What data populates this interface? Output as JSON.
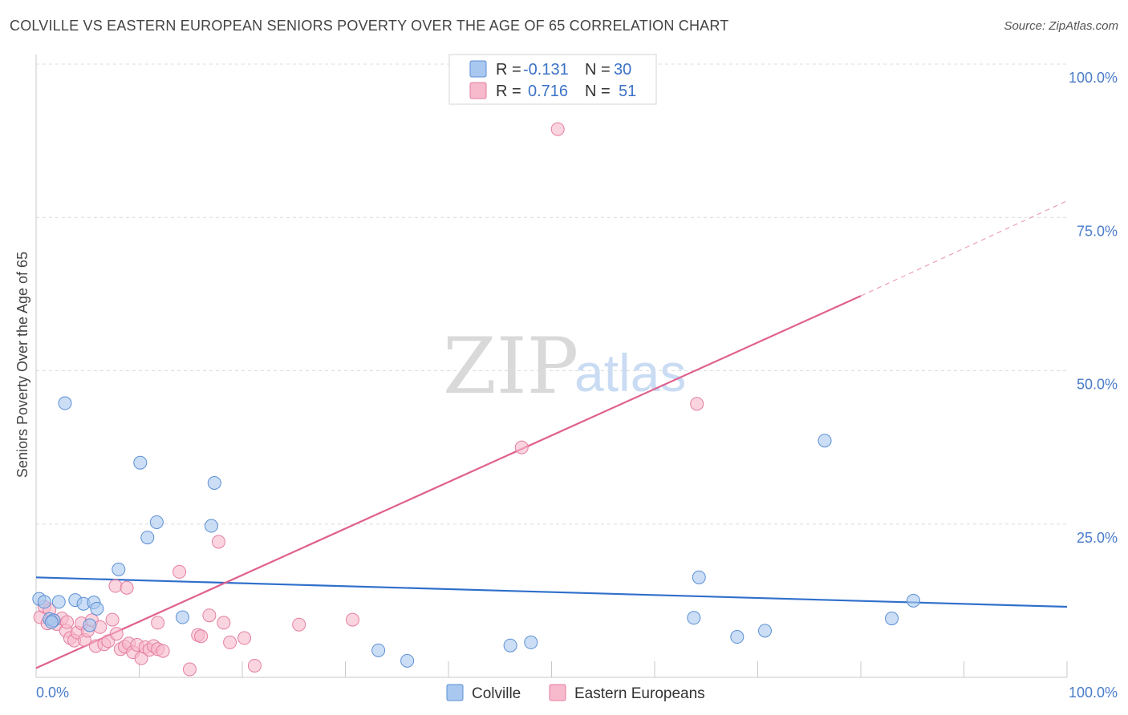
{
  "header": {
    "title": "COLVILLE VS EASTERN EUROPEAN SENIORS POVERTY OVER THE AGE OF 65 CORRELATION CHART",
    "source": "Source: ZipAtlas.com"
  },
  "watermark": {
    "zip": "ZIP",
    "atlas": "atlas"
  },
  "legend": {
    "rows": [
      {
        "r_label": "R =",
        "r_value": "-0.131",
        "n_label": "N =",
        "n_value": "30",
        "color": "#a9c8ef",
        "stroke": "#5b8fd4"
      },
      {
        "r_label": "R =",
        "r_value": "0.716",
        "n_label": "N =",
        "n_value": "51",
        "color": "#f7b9cc",
        "stroke": "#e47ea0"
      }
    ]
  },
  "bottom_legend": {
    "items": [
      "Colville",
      "Eastern Europeans"
    ]
  },
  "chart_data": {
    "type": "scatter",
    "title": "COLVILLE VS EASTERN EUROPEAN SENIORS POVERTY OVER THE AGE OF 65 CORRELATION CHART",
    "xlabel": "",
    "ylabel": "Seniors Poverty Over the Age of 65",
    "xlim": [
      0,
      100
    ],
    "ylim": [
      0,
      100
    ],
    "x_tick_labels": [
      "0.0%",
      "100.0%"
    ],
    "y_tick_labels": [
      "100.0%",
      "75.0%",
      "50.0%",
      "25.0%"
    ],
    "y_ticks": [
      100,
      75,
      50,
      25
    ],
    "colors": {
      "colville": "#a9c8ef",
      "colville_stroke": "#5b8fd4",
      "colville_line": "#2f6fcb",
      "eastern": "#f7b9cc",
      "eastern_stroke": "#e47ea0",
      "eastern_line": "#e0608e",
      "grid": "#dcdcdc"
    },
    "series": [
      {
        "name": "Colville",
        "trend": {
          "x1": 0,
          "y1": 16.3,
          "x2": 100,
          "y2": 11.5
        },
        "points": [
          [
            0.3,
            12.8
          ],
          [
            0.8,
            12.3
          ],
          [
            2.2,
            12.3
          ],
          [
            1.3,
            9.5
          ],
          [
            1.7,
            9.3
          ],
          [
            2.8,
            44.7
          ],
          [
            3.8,
            12.6
          ],
          [
            4.6,
            12.0
          ],
          [
            5.6,
            12.2
          ],
          [
            5.9,
            11.2
          ],
          [
            5.2,
            8.5
          ],
          [
            8.0,
            17.6
          ],
          [
            10.1,
            35.0
          ],
          [
            10.8,
            22.8
          ],
          [
            11.7,
            25.3
          ],
          [
            14.2,
            9.8
          ],
          [
            17.0,
            24.7
          ],
          [
            17.3,
            31.7
          ],
          [
            33.2,
            4.4
          ],
          [
            36.0,
            2.7
          ],
          [
            46.0,
            5.2
          ],
          [
            48.0,
            5.7
          ],
          [
            64.3,
            16.3
          ],
          [
            63.8,
            9.7
          ],
          [
            68.0,
            6.6
          ],
          [
            70.7,
            7.6
          ],
          [
            76.5,
            38.6
          ],
          [
            83.0,
            9.6
          ],
          [
            85.1,
            12.5
          ],
          [
            1.5,
            9.0
          ]
        ]
      },
      {
        "name": "Eastern Europeans",
        "trend": {
          "x1": 0,
          "y1": 1.5,
          "x2": 80.0,
          "y2": 62.2
        },
        "trend_extension": {
          "x1": 80.0,
          "y1": 62.2,
          "x2": 100,
          "y2": 77.7
        },
        "points": [
          [
            0.4,
            9.8
          ],
          [
            0.8,
            11.5
          ],
          [
            1.1,
            8.8
          ],
          [
            1.6,
            9.3
          ],
          [
            2.0,
            8.7
          ],
          [
            2.5,
            9.6
          ],
          [
            2.9,
            7.6
          ],
          [
            3.3,
            6.4
          ],
          [
            3.7,
            6.0
          ],
          [
            4.0,
            7.3
          ],
          [
            4.4,
            8.8
          ],
          [
            4.7,
            6.1
          ],
          [
            5.0,
            7.6
          ],
          [
            5.4,
            9.3
          ],
          [
            5.8,
            5.1
          ],
          [
            6.2,
            8.2
          ],
          [
            6.6,
            5.4
          ],
          [
            7.0,
            5.9
          ],
          [
            7.4,
            9.4
          ],
          [
            7.8,
            7.1
          ],
          [
            8.2,
            4.6
          ],
          [
            8.6,
            5.0
          ],
          [
            9.0,
            5.5
          ],
          [
            9.4,
            4.1
          ],
          [
            9.8,
            5.3
          ],
          [
            10.2,
            3.1
          ],
          [
            10.6,
            4.9
          ],
          [
            11.0,
            4.5
          ],
          [
            11.4,
            5.1
          ],
          [
            11.8,
            4.6
          ],
          [
            7.7,
            14.9
          ],
          [
            8.8,
            14.6
          ],
          [
            11.8,
            8.9
          ],
          [
            13.9,
            17.2
          ],
          [
            14.9,
            1.3
          ],
          [
            15.7,
            6.9
          ],
          [
            16.0,
            6.7
          ],
          [
            16.8,
            10.1
          ],
          [
            17.7,
            22.1
          ],
          [
            18.2,
            8.9
          ],
          [
            18.8,
            5.7
          ],
          [
            20.2,
            6.4
          ],
          [
            21.2,
            1.9
          ],
          [
            25.5,
            8.6
          ],
          [
            30.7,
            9.4
          ],
          [
            47.1,
            37.5
          ],
          [
            50.6,
            89.4
          ],
          [
            64.1,
            44.6
          ],
          [
            1.3,
            11.0
          ],
          [
            3.0,
            9.0
          ],
          [
            12.3,
            4.3
          ]
        ]
      }
    ]
  }
}
